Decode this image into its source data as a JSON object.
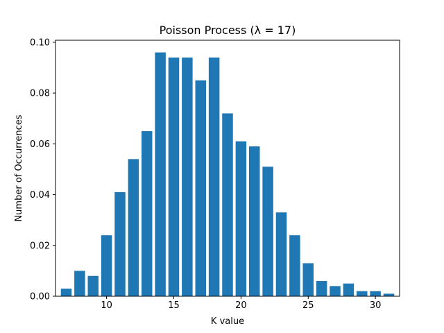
{
  "chart_data": {
    "type": "bar",
    "title": "Poisson Process (λ = 17)",
    "xlabel": "K value",
    "ylabel": "Number of Occurrences",
    "x": [
      7,
      8,
      9,
      10,
      11,
      12,
      13,
      14,
      15,
      16,
      17,
      18,
      19,
      20,
      21,
      22,
      23,
      24,
      25,
      26,
      27,
      28,
      29,
      30,
      31
    ],
    "values": [
      0.003,
      0.01,
      0.008,
      0.024,
      0.041,
      0.054,
      0.065,
      0.096,
      0.094,
      0.094,
      0.085,
      0.094,
      0.072,
      0.061,
      0.059,
      0.051,
      0.033,
      0.024,
      0.013,
      0.006,
      0.004,
      0.005,
      0.002,
      0.002,
      0.001
    ],
    "xlim": [
      6.2,
      31.8
    ],
    "ylim": [
      0,
      0.1008
    ],
    "xticks": [
      10,
      15,
      20,
      25,
      30
    ],
    "xtick_labels": [
      "10",
      "15",
      "20",
      "25",
      "30"
    ],
    "yticks": [
      0,
      0.02,
      0.04,
      0.06,
      0.08,
      0.1
    ],
    "ytick_labels": [
      "0.00",
      "0.02",
      "0.04",
      "0.06",
      "0.08",
      "0.10"
    ],
    "bar_color": "#1f77b4",
    "grid": false,
    "legend": false
  }
}
